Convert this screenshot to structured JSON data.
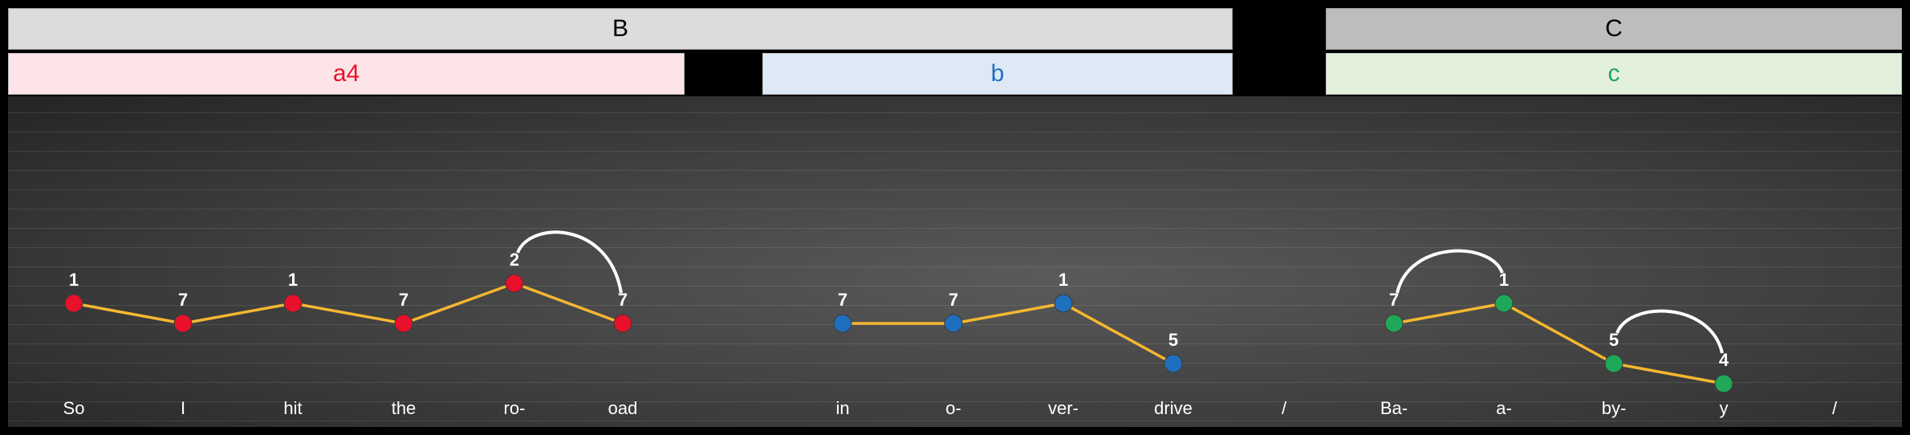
{
  "colors": {
    "background": "#000000",
    "line": "#f5b731",
    "phrase_a": "#e8102a",
    "phrase_b": "#1f6fbf",
    "phrase_c": "#1fa85a"
  },
  "sections": [
    {
      "label": "B",
      "fill": "#dcdcdc"
    },
    {
      "label": "C",
      "fill": "#bdbdbd"
    }
  ],
  "phrases": [
    {
      "label": "a4",
      "color": "#e8102a",
      "fill": "#fde4e8"
    },
    {
      "label": "b",
      "color": "#1f6fbf",
      "fill": "#dde9f6"
    },
    {
      "label": "c",
      "color": "#1fa85a",
      "fill": "#e3f1dc"
    }
  ],
  "syllables": [
    "So",
    "I",
    "hit",
    "the",
    "ro-",
    "oad",
    "in",
    "o-",
    "ver-",
    "drive",
    "/",
    "Ba-",
    "a-",
    "by-",
    "y",
    "/"
  ],
  "chart_data": {
    "type": "line",
    "y_meaning": "scale degree (higher value drawn lower)",
    "groups": [
      {
        "phrase": "a4",
        "notes": [
          {
            "syllable": "So",
            "degree": "1",
            "value": 1
          },
          {
            "syllable": "I",
            "degree": "7",
            "value": 0
          },
          {
            "syllable": "hit",
            "degree": "1",
            "value": 1
          },
          {
            "syllable": "the",
            "degree": "7",
            "value": 0
          },
          {
            "syllable": "ro-",
            "degree": "2",
            "value": 2
          },
          {
            "syllable": "oad",
            "degree": "7",
            "value": 0
          }
        ],
        "slurs": [
          [
            4,
            5
          ]
        ]
      },
      {
        "phrase": "b",
        "notes": [
          {
            "syllable": "in",
            "degree": "7",
            "value": 0
          },
          {
            "syllable": "o-",
            "degree": "7",
            "value": 0
          },
          {
            "syllable": "ver-",
            "degree": "1",
            "value": 1
          },
          {
            "syllable": "drive",
            "degree": "5",
            "value": -2
          }
        ],
        "slurs": []
      },
      {
        "phrase": "c",
        "notes": [
          {
            "syllable": "Ba-",
            "degree": "7",
            "value": 0
          },
          {
            "syllable": "a-",
            "degree": "1",
            "value": 1
          },
          {
            "syllable": "by-",
            "degree": "5",
            "value": -2
          },
          {
            "syllable": "y",
            "degree": "4",
            "value": -3
          }
        ],
        "slurs": [
          [
            0,
            1
          ],
          [
            2,
            3
          ]
        ]
      }
    ]
  }
}
